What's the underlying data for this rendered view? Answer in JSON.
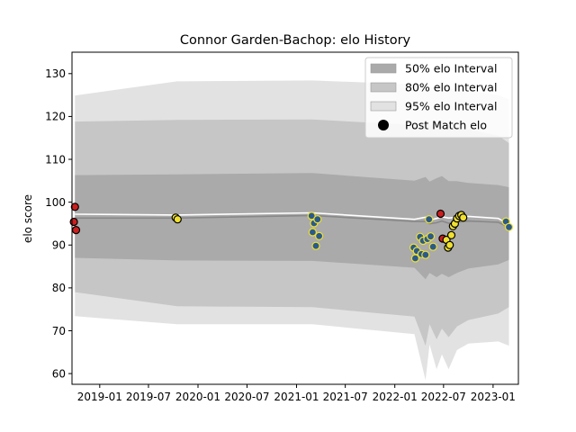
{
  "chart_data": {
    "type": "line",
    "title": "Connor Garden-Bachop: elo History",
    "xlabel": "",
    "ylabel": "elo score",
    "xlim": [
      "2018-09-20",
      "2023-04-05"
    ],
    "ylim": [
      57.5,
      135
    ],
    "x_ticks": [
      "2019-01",
      "2019-07",
      "2020-01",
      "2020-07",
      "2021-01",
      "2021-07",
      "2022-01",
      "2022-07",
      "2023-01"
    ],
    "y_ticks": [
      60,
      70,
      80,
      90,
      100,
      110,
      120,
      130
    ],
    "grid": false,
    "legend": {
      "placement": "top-right",
      "entries": [
        {
          "label": "50% elo Interval",
          "swatch": "#aaaaaa"
        },
        {
          "label": "80% elo Interval",
          "swatch": "#c6c6c6"
        },
        {
          "label": "95% elo Interval",
          "swatch": "#e2e2e2"
        },
        {
          "label": "Post Match elo",
          "swatch": "#000000"
        }
      ]
    },
    "colors": {
      "band95": "#e2e2e2",
      "band80": "#c6c6c6",
      "band50": "#aaaaaa",
      "mean_line": "#ffffff",
      "post_line": "#888888",
      "point_outline_yellow": "#f0e030",
      "point_outline_black": "#000000",
      "point_fill_blue": "#2a5a8c",
      "point_fill_red": "#cc1f1f",
      "point_fill_yellow": "#f0e030"
    },
    "bands": {
      "x": [
        "2018-10-01",
        "2019-10-15",
        "2021-03-01",
        "2022-03-15",
        "2022-04-25",
        "2022-05-10",
        "2022-06-05",
        "2022-06-25",
        "2022-07-20",
        "2022-08-20",
        "2022-10-01",
        "2023-01-20",
        "2023-03-01"
      ],
      "p95_upper": [
        124.9,
        128.2,
        128.4,
        127.5,
        127.8,
        126.5,
        127.5,
        128.5,
        126.5,
        126.5,
        126.0,
        125.0,
        124.0
      ],
      "p95_lower": [
        73.4,
        71.5,
        71.5,
        69.2,
        58.5,
        66.8,
        61.0,
        64.5,
        61.0,
        65.5,
        67.0,
        67.5,
        66.5
      ],
      "p80_upper": [
        118.8,
        119.2,
        119.3,
        118.0,
        118.8,
        117.8,
        118.6,
        119.2,
        117.8,
        117.8,
        117.0,
        115.5,
        113.8
      ],
      "p80_lower": [
        79.0,
        75.7,
        75.5,
        73.3,
        66.5,
        71.5,
        68.0,
        70.5,
        68.5,
        71.0,
        72.5,
        74.0,
        75.5
      ],
      "p50_upper": [
        106.3,
        106.5,
        106.8,
        105.0,
        105.9,
        104.8,
        105.6,
        106.1,
        104.9,
        104.9,
        104.5,
        104.0,
        103.5
      ],
      "p50_lower": [
        87.0,
        86.4,
        86.3,
        84.7,
        82.0,
        83.5,
        82.5,
        83.3,
        82.5,
        83.5,
        84.5,
        85.5,
        86.5
      ],
      "mean": [
        97.2,
        97.0,
        97.5,
        96.0,
        96.5,
        95.8,
        96.2,
        96.6,
        96.3,
        96.5,
        96.7,
        96.2,
        94.8
      ],
      "post_match": [
        96.3,
        96.3,
        96.9,
        95.5,
        95.5,
        95.0,
        95.2,
        95.6,
        95.1,
        95.3,
        95.6,
        95.3,
        94.2
      ]
    },
    "series": [
      {
        "name": "Post Match elo",
        "points": [
          {
            "x": "2018-09-27",
            "y": 95.4,
            "fill": "red"
          },
          {
            "x": "2018-10-01",
            "y": 98.9,
            "fill": "red"
          },
          {
            "x": "2018-10-05",
            "y": 93.5,
            "fill": "red"
          },
          {
            "x": "2019-10-10",
            "y": 96.4,
            "fill": "yellow"
          },
          {
            "x": "2019-10-17",
            "y": 96.0,
            "fill": "yellow"
          },
          {
            "x": "2021-02-26",
            "y": 96.8,
            "fill": "blue"
          },
          {
            "x": "2021-03-02",
            "y": 93.0,
            "fill": "blue"
          },
          {
            "x": "2021-03-07",
            "y": 95.1,
            "fill": "blue"
          },
          {
            "x": "2021-03-14",
            "y": 89.8,
            "fill": "blue"
          },
          {
            "x": "2021-03-20",
            "y": 96.0,
            "fill": "blue"
          },
          {
            "x": "2021-03-26",
            "y": 92.1,
            "fill": "blue"
          },
          {
            "x": "2022-03-12",
            "y": 89.4,
            "fill": "blue"
          },
          {
            "x": "2022-03-18",
            "y": 86.9,
            "fill": "blue"
          },
          {
            "x": "2022-03-24",
            "y": 88.6,
            "fill": "blue"
          },
          {
            "x": "2022-04-05",
            "y": 91.9,
            "fill": "blue"
          },
          {
            "x": "2022-04-10",
            "y": 87.9,
            "fill": "blue"
          },
          {
            "x": "2022-04-16",
            "y": 91.0,
            "fill": "blue"
          },
          {
            "x": "2022-04-25",
            "y": 87.7,
            "fill": "blue"
          },
          {
            "x": "2022-05-02",
            "y": 91.4,
            "fill": "blue"
          },
          {
            "x": "2022-05-08",
            "y": 96.0,
            "fill": "blue"
          },
          {
            "x": "2022-05-14",
            "y": 92.0,
            "fill": "blue"
          },
          {
            "x": "2022-05-23",
            "y": 89.6,
            "fill": "blue"
          },
          {
            "x": "2022-06-20",
            "y": 97.3,
            "fill": "red"
          },
          {
            "x": "2022-06-28",
            "y": 91.5,
            "fill": "red"
          },
          {
            "x": "2022-07-12",
            "y": 91.2,
            "fill": "yellow"
          },
          {
            "x": "2022-07-18",
            "y": 89.4,
            "fill": "yellow"
          },
          {
            "x": "2022-07-24",
            "y": 90.0,
            "fill": "yellow"
          },
          {
            "x": "2022-07-30",
            "y": 92.3,
            "fill": "yellow"
          },
          {
            "x": "2022-08-05",
            "y": 94.4,
            "fill": "yellow"
          },
          {
            "x": "2022-08-12",
            "y": 95.0,
            "fill": "yellow"
          },
          {
            "x": "2022-08-20",
            "y": 96.2,
            "fill": "yellow"
          },
          {
            "x": "2022-08-28",
            "y": 96.8,
            "fill": "yellow"
          },
          {
            "x": "2022-09-05",
            "y": 97.0,
            "fill": "yellow"
          },
          {
            "x": "2022-09-12",
            "y": 96.4,
            "fill": "yellow"
          },
          {
            "x": "2023-02-18",
            "y": 95.5,
            "fill": "blue"
          },
          {
            "x": "2023-03-01",
            "y": 94.2,
            "fill": "blue"
          }
        ]
      }
    ]
  }
}
